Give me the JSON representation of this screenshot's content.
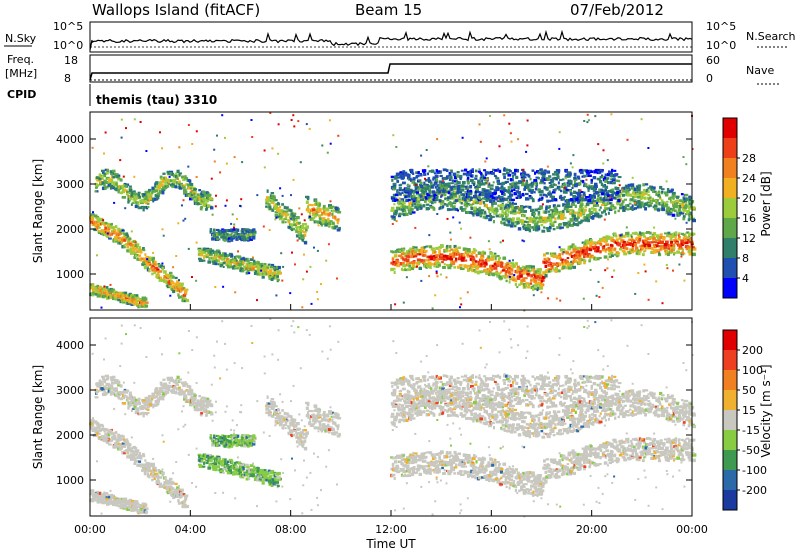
{
  "header": {
    "station": "Wallops Island (fitACF)",
    "beam": "Beam 15",
    "date": "07/Feb/2012"
  },
  "panels": {
    "nsky": {
      "label": "N.Sky",
      "right_label": "N.Search",
      "ticks_left": [
        "10^5",
        "10^0"
      ],
      "ticks_right": [
        "10^5",
        "10^0"
      ]
    },
    "freq": {
      "label": "Freq.",
      "unit": "[MHz]",
      "ticks_left": [
        "18",
        "8"
      ],
      "right_label": "Nave",
      "ticks_right": [
        "60",
        "0"
      ]
    },
    "cpid": {
      "label": "CPID",
      "value": "themis (tau) 3310"
    }
  },
  "chart_data": [
    {
      "type": "heatmap",
      "name": "power",
      "ylabel": "Slant Range [km]",
      "ylim": [
        200,
        4600
      ],
      "yticks": [
        "1000",
        "2000",
        "3000",
        "4000"
      ],
      "xlim": [
        "00:00",
        "24:00"
      ],
      "colorbar": {
        "label": "Power [dB]",
        "ticks": [
          "4",
          "8",
          "12",
          "16",
          "20",
          "24",
          "28"
        ],
        "colors": [
          "#0000ff",
          "#1f4fb0",
          "#2f7f6a",
          "#5fa84a",
          "#9ccc3c",
          "#f0b020",
          "#f08020",
          "#ee4018",
          "#e00000"
        ]
      },
      "regions": [
        {
          "t": [
            0.0,
            3.8
          ],
          "range": [
            900,
            2300
          ],
          "level": "high"
        },
        {
          "t": [
            1.0,
            4.8
          ],
          "range": [
            2500,
            3300
          ],
          "level": "mid"
        },
        {
          "t": [
            4.3,
            7.5
          ],
          "range": [
            800,
            1900
          ],
          "level": "mid"
        },
        {
          "t": [
            7.0,
            9.9
          ],
          "range": [
            1700,
            3200
          ],
          "level": "mid"
        },
        {
          "t": [
            12.0,
            24.0
          ],
          "range": [
            700,
            2000
          ],
          "level": "high"
        },
        {
          "t": [
            12.0,
            24.0
          ],
          "range": [
            2000,
            3400
          ],
          "level": "mid"
        }
      ]
    },
    {
      "type": "heatmap",
      "name": "velocity",
      "ylabel": "Slant Range [km]",
      "ylim": [
        200,
        4600
      ],
      "yticks": [
        "1000",
        "2000",
        "3000",
        "4000"
      ],
      "xlim": [
        "00:00",
        "24:00"
      ],
      "xticks": [
        "00:00",
        "04:00",
        "08:00",
        "12:00",
        "16:00",
        "20:00",
        "00:00"
      ],
      "xlabel": "Time UT",
      "colorbar": {
        "label": "Velocity [m s⁻¹]",
        "ticks": [
          "200",
          "100",
          "50",
          "15",
          "-15",
          "-50",
          "-100",
          "-200"
        ],
        "colors": [
          "#1a3aa0",
          "#2a6aa8",
          "#3e9a50",
          "#88cc44",
          "#c8c8c0",
          "#f0b030",
          "#f08020",
          "#ee4020",
          "#e00000"
        ]
      }
    }
  ]
}
